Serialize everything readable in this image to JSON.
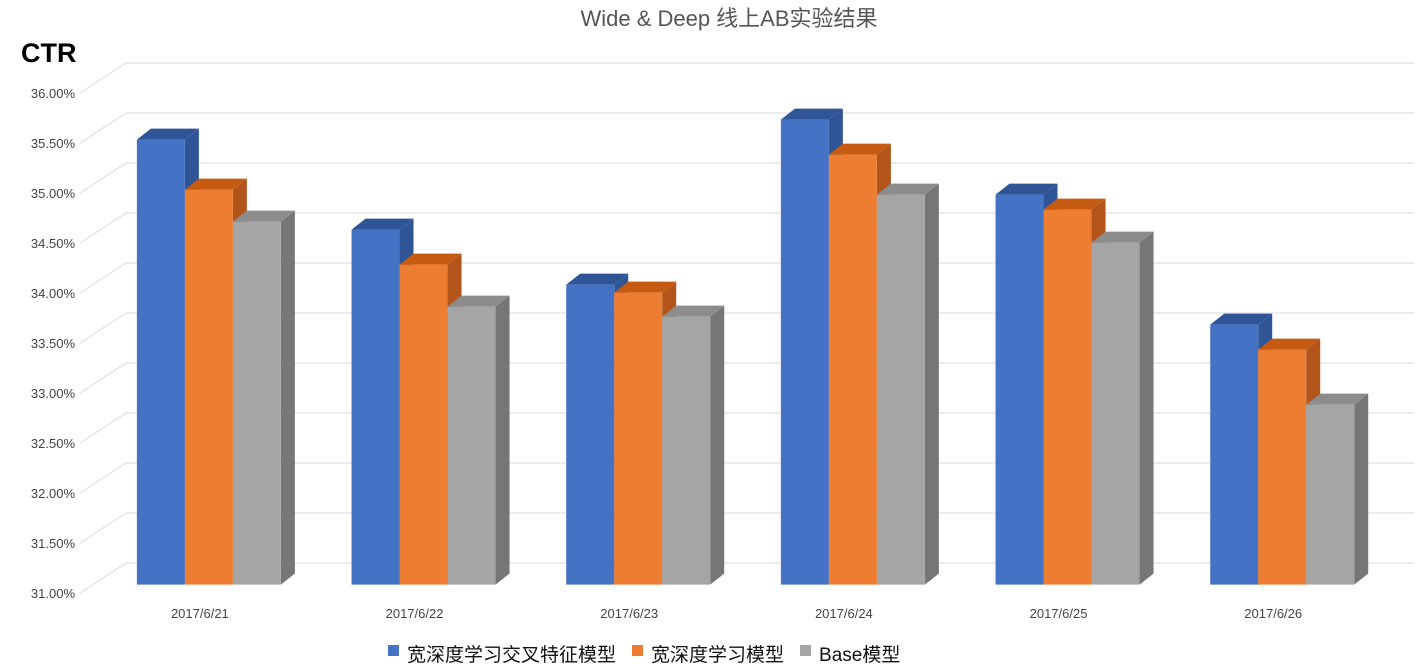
{
  "chart_data": {
    "type": "bar",
    "style": "3d-clustered-column",
    "title": "Wide & Deep 线上AB实验结果",
    "xlabel": "",
    "ylabel": "CTR",
    "ylim": [
      0.31,
      0.36
    ],
    "ytick_step": 0.005,
    "y_tick_labels": [
      "31.00%",
      "31.50%",
      "32.00%",
      "32.50%",
      "33.00%",
      "33.50%",
      "34.00%",
      "34.50%",
      "35.00%",
      "35.50%",
      "36.00%"
    ],
    "grid": true,
    "legend_position": "bottom-center",
    "categories": [
      "2017/6/21",
      "2017/6/22",
      "2017/6/23",
      "2017/6/24",
      "2017/6/25",
      "2017/6/26"
    ],
    "series": [
      {
        "name": "宽深度学习交叉特征模型",
        "color": "#4472C4",
        "top_color": "#2F5597",
        "side_color": "#2F5597",
        "values": [
          0.3545,
          0.3455,
          0.34,
          0.3565,
          0.349,
          0.336
        ]
      },
      {
        "name": "宽深度学习模型",
        "color": "#ED7D31",
        "top_color": "#C55A11",
        "side_color": "#B3541B",
        "values": [
          0.3495,
          0.342,
          0.3392,
          0.353,
          0.3475,
          0.3335
        ]
      },
      {
        "name": "Base模型",
        "color": "#A5A5A5",
        "top_color": "#8C8C8C",
        "side_color": "#767676",
        "values": [
          0.3463,
          0.3378,
          0.3368,
          0.349,
          0.3442,
          0.328
        ]
      }
    ]
  }
}
